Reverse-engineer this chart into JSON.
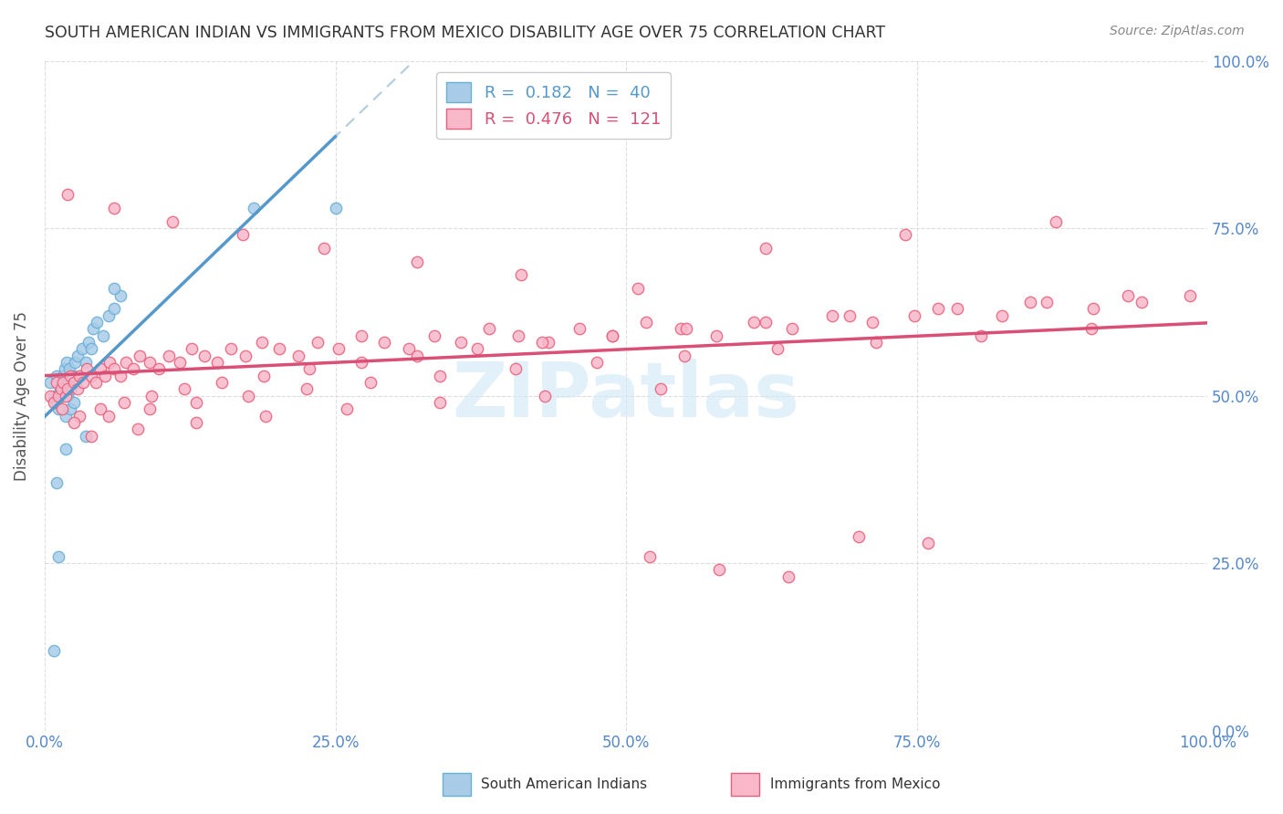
{
  "title": "SOUTH AMERICAN INDIAN VS IMMIGRANTS FROM MEXICO DISABILITY AGE OVER 75 CORRELATION CHART",
  "source": "Source: ZipAtlas.com",
  "ylabel": "Disability Age Over 75",
  "legend_blue_r": "0.182",
  "legend_blue_n": "40",
  "legend_pink_r": "0.476",
  "legend_pink_n": "121",
  "legend_label_blue": "South American Indians",
  "legend_label_pink": "Immigrants from Mexico",
  "blue_color": "#a8cce8",
  "blue_edge_color": "#6aaed6",
  "pink_color": "#f9b8ca",
  "pink_edge_color": "#e8607a",
  "trendline_blue_color": "#5599cc",
  "trendline_pink_color": "#d94f75",
  "trendline_blue_dashed_color": "#b0ccdd",
  "axis_tick_color": "#5588cc",
  "ylabel_color": "#555555",
  "title_color": "#333333",
  "source_color": "#888888",
  "bg_color": "#ffffff",
  "grid_color": "#dddddd",
  "watermark_color": "#d0e8f5",
  "watermark": "ZIPatlas",
  "blue_x": [
    0.005,
    0.008,
    0.01,
    0.01,
    0.012,
    0.013,
    0.014,
    0.015,
    0.016,
    0.017,
    0.018,
    0.019,
    0.02,
    0.02,
    0.021,
    0.022,
    0.023,
    0.024,
    0.025,
    0.026,
    0.028,
    0.03,
    0.032,
    0.035,
    0.038,
    0.04,
    0.042,
    0.045,
    0.05,
    0.055,
    0.06,
    0.065,
    0.01,
    0.018,
    0.035,
    0.06,
    0.18,
    0.25,
    0.012,
    0.008
  ],
  "blue_y": [
    0.52,
    0.5,
    0.49,
    0.53,
    0.48,
    0.51,
    0.5,
    0.52,
    0.53,
    0.54,
    0.47,
    0.55,
    0.5,
    0.52,
    0.54,
    0.48,
    0.51,
    0.53,
    0.49,
    0.55,
    0.56,
    0.53,
    0.57,
    0.55,
    0.58,
    0.57,
    0.6,
    0.61,
    0.59,
    0.62,
    0.63,
    0.65,
    0.37,
    0.42,
    0.44,
    0.66,
    0.78,
    0.78,
    0.26,
    0.12
  ],
  "pink_x": [
    0.005,
    0.008,
    0.01,
    0.012,
    0.014,
    0.016,
    0.018,
    0.02,
    0.022,
    0.025,
    0.028,
    0.03,
    0.033,
    0.036,
    0.04,
    0.044,
    0.048,
    0.052,
    0.056,
    0.06,
    0.065,
    0.07,
    0.076,
    0.082,
    0.09,
    0.098,
    0.107,
    0.116,
    0.126,
    0.137,
    0.148,
    0.16,
    0.173,
    0.187,
    0.202,
    0.218,
    0.235,
    0.253,
    0.272,
    0.292,
    0.313,
    0.335,
    0.358,
    0.382,
    0.407,
    0.433,
    0.46,
    0.488,
    0.517,
    0.547,
    0.578,
    0.61,
    0.643,
    0.677,
    0.712,
    0.748,
    0.785,
    0.823,
    0.862,
    0.902,
    0.943,
    0.985,
    0.015,
    0.03,
    0.048,
    0.068,
    0.092,
    0.12,
    0.152,
    0.188,
    0.228,
    0.272,
    0.32,
    0.372,
    0.428,
    0.488,
    0.552,
    0.62,
    0.692,
    0.768,
    0.848,
    0.932,
    0.025,
    0.055,
    0.09,
    0.13,
    0.175,
    0.225,
    0.28,
    0.34,
    0.405,
    0.475,
    0.55,
    0.63,
    0.715,
    0.805,
    0.9,
    0.04,
    0.08,
    0.13,
    0.19,
    0.26,
    0.34,
    0.43,
    0.53,
    0.02,
    0.06,
    0.11,
    0.17,
    0.24,
    0.32,
    0.41,
    0.51,
    0.62,
    0.74,
    0.87,
    0.52,
    0.58,
    0.64,
    0.7,
    0.76
  ],
  "pink_y": [
    0.5,
    0.49,
    0.52,
    0.5,
    0.51,
    0.52,
    0.5,
    0.51,
    0.53,
    0.52,
    0.51,
    0.53,
    0.52,
    0.54,
    0.53,
    0.52,
    0.54,
    0.53,
    0.55,
    0.54,
    0.53,
    0.55,
    0.54,
    0.56,
    0.55,
    0.54,
    0.56,
    0.55,
    0.57,
    0.56,
    0.55,
    0.57,
    0.56,
    0.58,
    0.57,
    0.56,
    0.58,
    0.57,
    0.59,
    0.58,
    0.57,
    0.59,
    0.58,
    0.6,
    0.59,
    0.58,
    0.6,
    0.59,
    0.61,
    0.6,
    0.59,
    0.61,
    0.6,
    0.62,
    0.61,
    0.62,
    0.63,
    0.62,
    0.64,
    0.63,
    0.64,
    0.65,
    0.48,
    0.47,
    0.48,
    0.49,
    0.5,
    0.51,
    0.52,
    0.53,
    0.54,
    0.55,
    0.56,
    0.57,
    0.58,
    0.59,
    0.6,
    0.61,
    0.62,
    0.63,
    0.64,
    0.65,
    0.46,
    0.47,
    0.48,
    0.49,
    0.5,
    0.51,
    0.52,
    0.53,
    0.54,
    0.55,
    0.56,
    0.57,
    0.58,
    0.59,
    0.6,
    0.44,
    0.45,
    0.46,
    0.47,
    0.48,
    0.49,
    0.5,
    0.51,
    0.8,
    0.78,
    0.76,
    0.74,
    0.72,
    0.7,
    0.68,
    0.66,
    0.72,
    0.74,
    0.76,
    0.26,
    0.24,
    0.23,
    0.29,
    0.28
  ]
}
